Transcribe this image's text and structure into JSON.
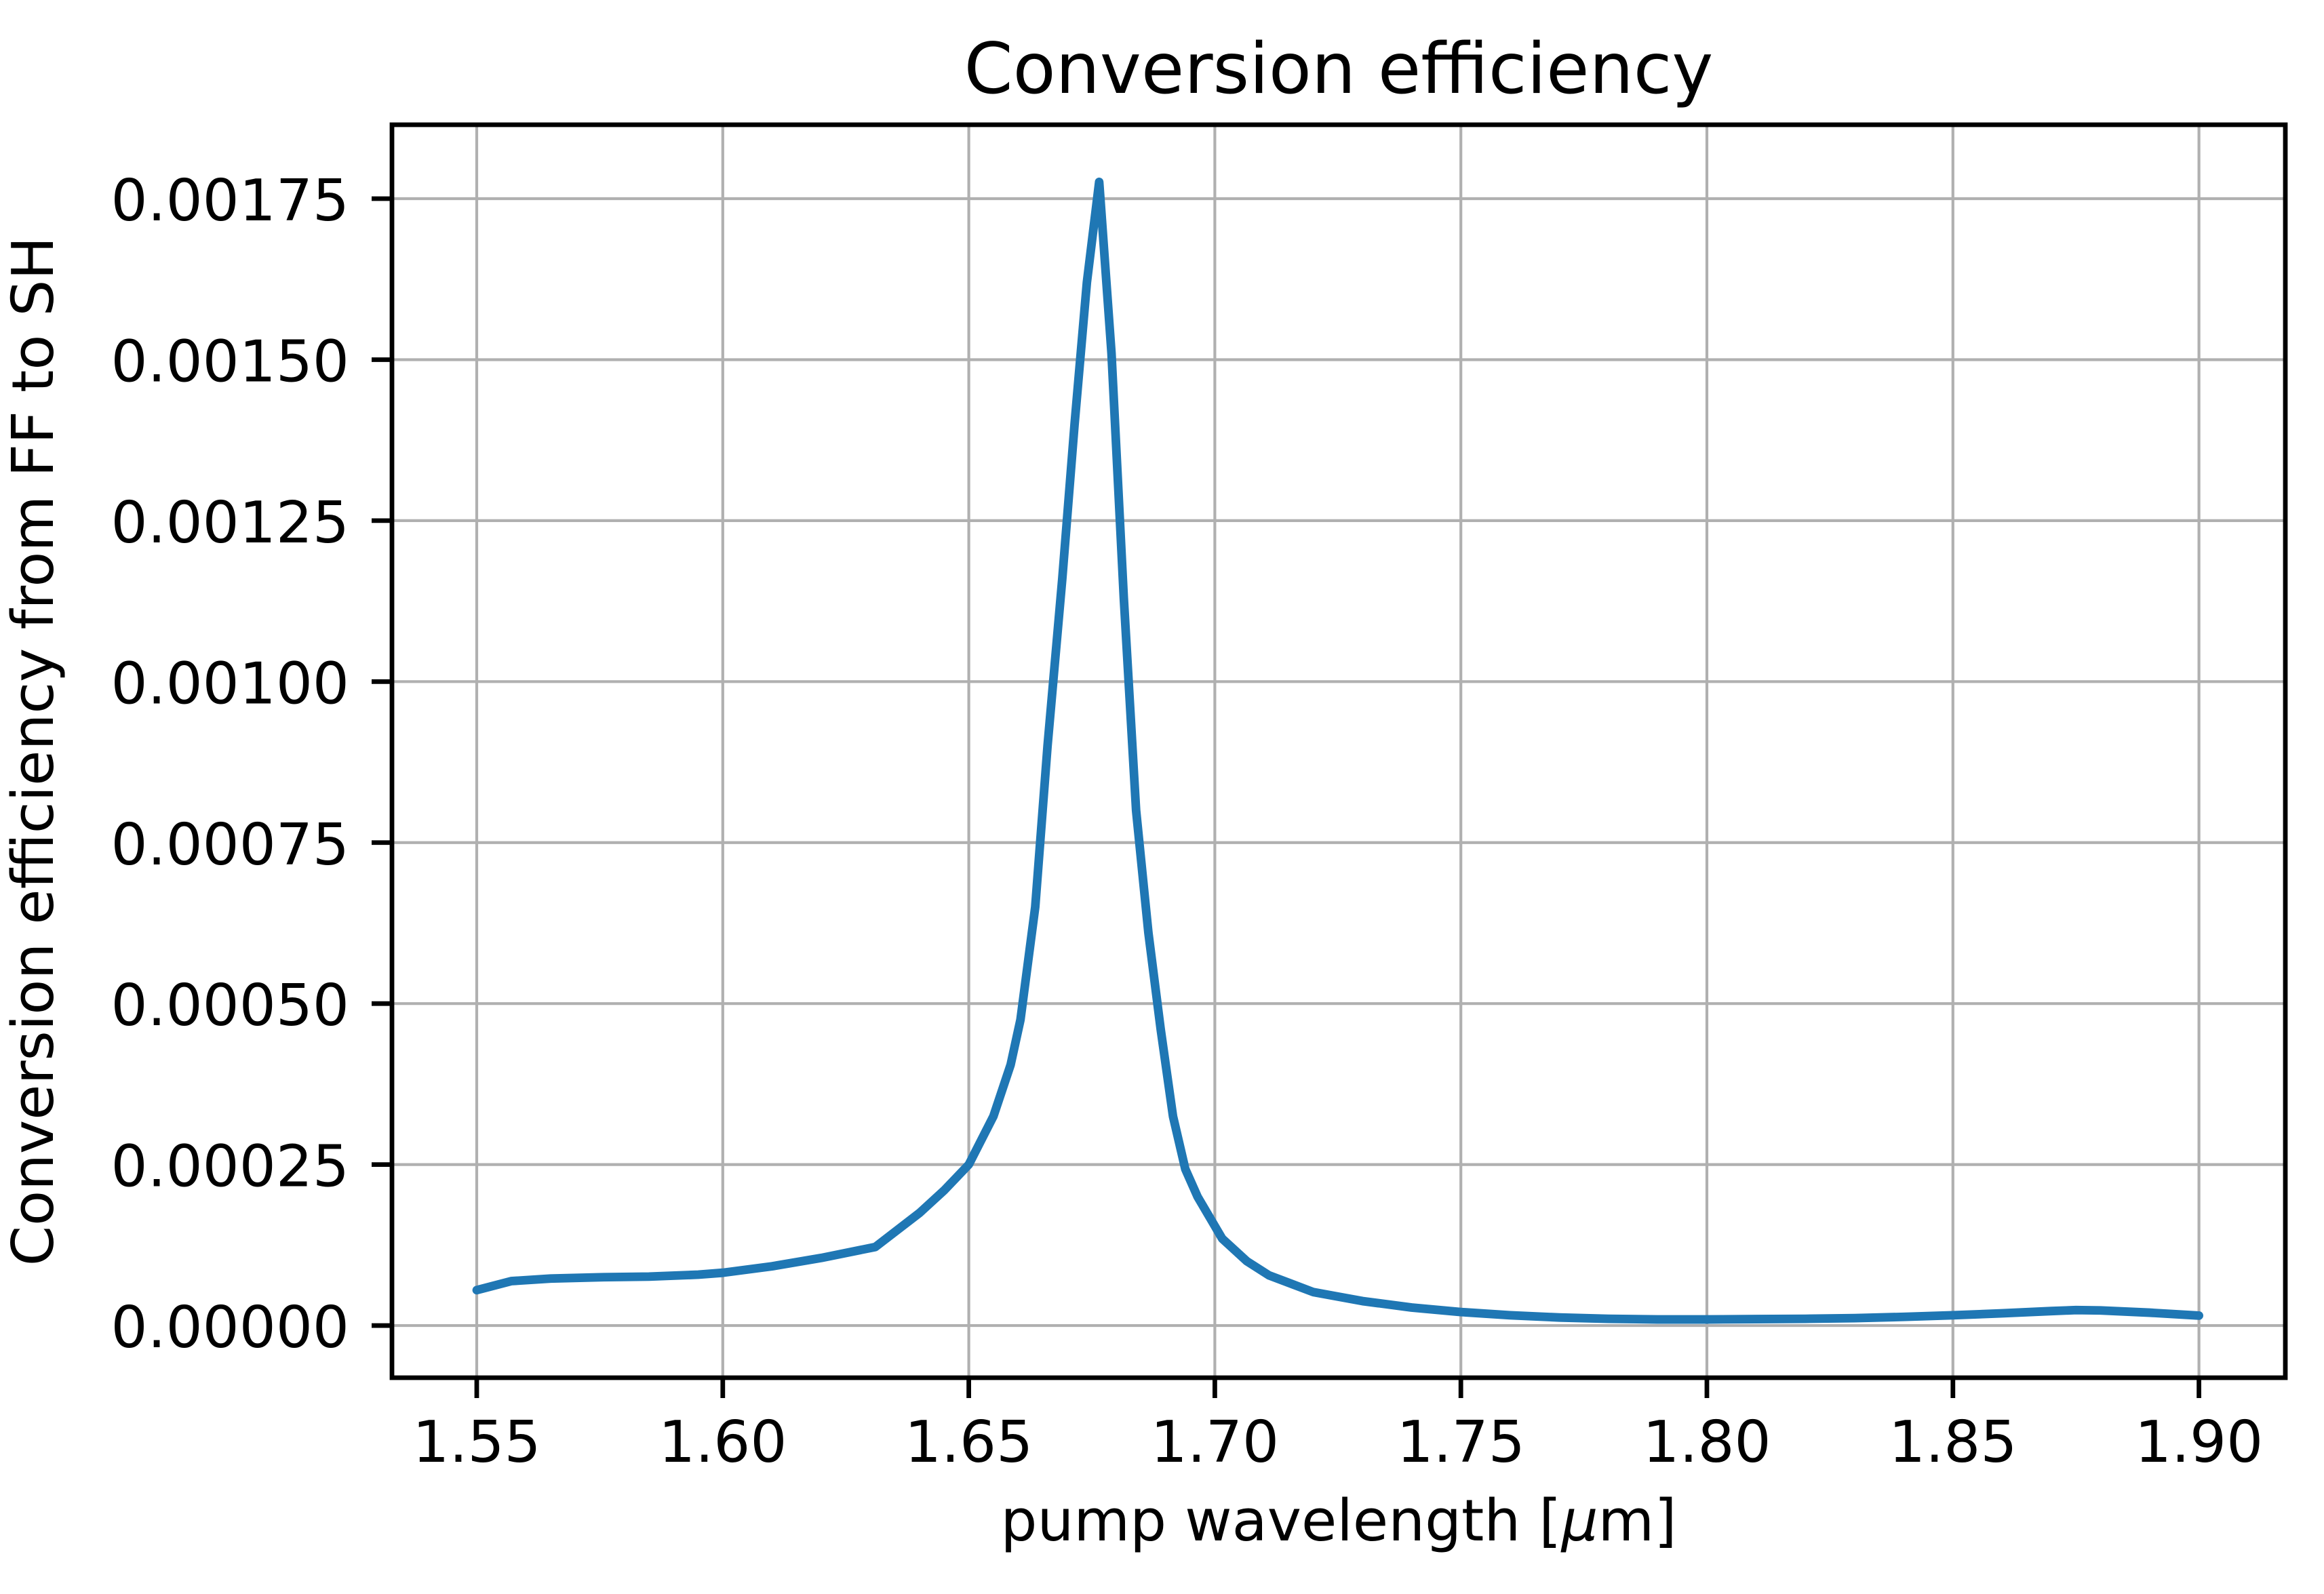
{
  "chart_data": {
    "type": "line",
    "title": "Conversion efficiency",
    "xlabel": "pump wavelength [μm]",
    "ylabel": "Conversion efficiency from FF to SH",
    "x_tick_labels": [
      "1.55",
      "1.60",
      "1.65",
      "1.70",
      "1.75",
      "1.80",
      "1.85",
      "1.90"
    ],
    "x_tick_values": [
      1.55,
      1.6,
      1.65,
      1.7,
      1.75,
      1.8,
      1.85,
      1.9
    ],
    "y_tick_labels": [
      "0.00000",
      "0.00025",
      "0.00050",
      "0.00075",
      "0.00100",
      "0.00125",
      "0.00150",
      "0.00175"
    ],
    "y_tick_values": [
      0.0,
      0.00025,
      0.0005,
      0.00075,
      0.001,
      0.00125,
      0.0015,
      0.00175
    ],
    "xlim": [
      1.532773,
      1.917558
    ],
    "ylim": [
      -8.1e-05,
      0.0018648
    ],
    "grid": true,
    "legend": false,
    "line_color": "#1f77b4",
    "grid_color": "#b0b0b0",
    "axis_color": "#000000",
    "series": [
      {
        "name": "conversion efficiency from FF to SH",
        "x": [
          1.55,
          1.557,
          1.565,
          1.575,
          1.585,
          1.595,
          1.6,
          1.61,
          1.62,
          1.631,
          1.64,
          1.645,
          1.65,
          1.655,
          1.6585,
          1.6605,
          1.6635,
          1.666,
          1.669,
          1.6715,
          1.674,
          1.6765,
          1.679,
          1.6815,
          1.684,
          1.6865,
          1.689,
          1.6915,
          1.694,
          1.6965,
          1.7015,
          1.7065,
          1.711,
          1.72,
          1.73,
          1.74,
          1.75,
          1.76,
          1.77,
          1.78,
          1.79,
          1.8,
          1.81,
          1.82,
          1.83,
          1.84,
          1.85,
          1.86,
          1.87,
          1.875,
          1.88,
          1.89,
          1.9
        ],
        "y": [
          5.5e-05,
          6.9e-05,
          7.3e-05,
          7.5e-05,
          7.6e-05,
          7.9e-05,
          8.2e-05,
          9.2e-05,
          0.000105,
          0.000122,
          0.000175,
          0.00021,
          0.00025,
          0.000325,
          0.000405,
          0.000475,
          0.00065,
          0.0009,
          0.00116,
          0.0014,
          0.00162,
          0.001776,
          0.00151,
          0.00113,
          0.0008,
          0.00061,
          0.00046,
          0.000325,
          0.000243,
          0.0002,
          0.000135,
          0.0001,
          7.8e-05,
          5.2e-05,
          3.8e-05,
          2.8e-05,
          2.1e-05,
          1.6e-05,
          1.25e-05,
          1.05e-05,
          9.5e-06,
          9.5e-06,
          1e-05,
          1.05e-05,
          1.15e-05,
          1.35e-05,
          1.6e-05,
          1.9e-05,
          2.25e-05,
          2.4e-05,
          2.35e-05,
          2e-05,
          1.55e-05
        ]
      }
    ]
  }
}
